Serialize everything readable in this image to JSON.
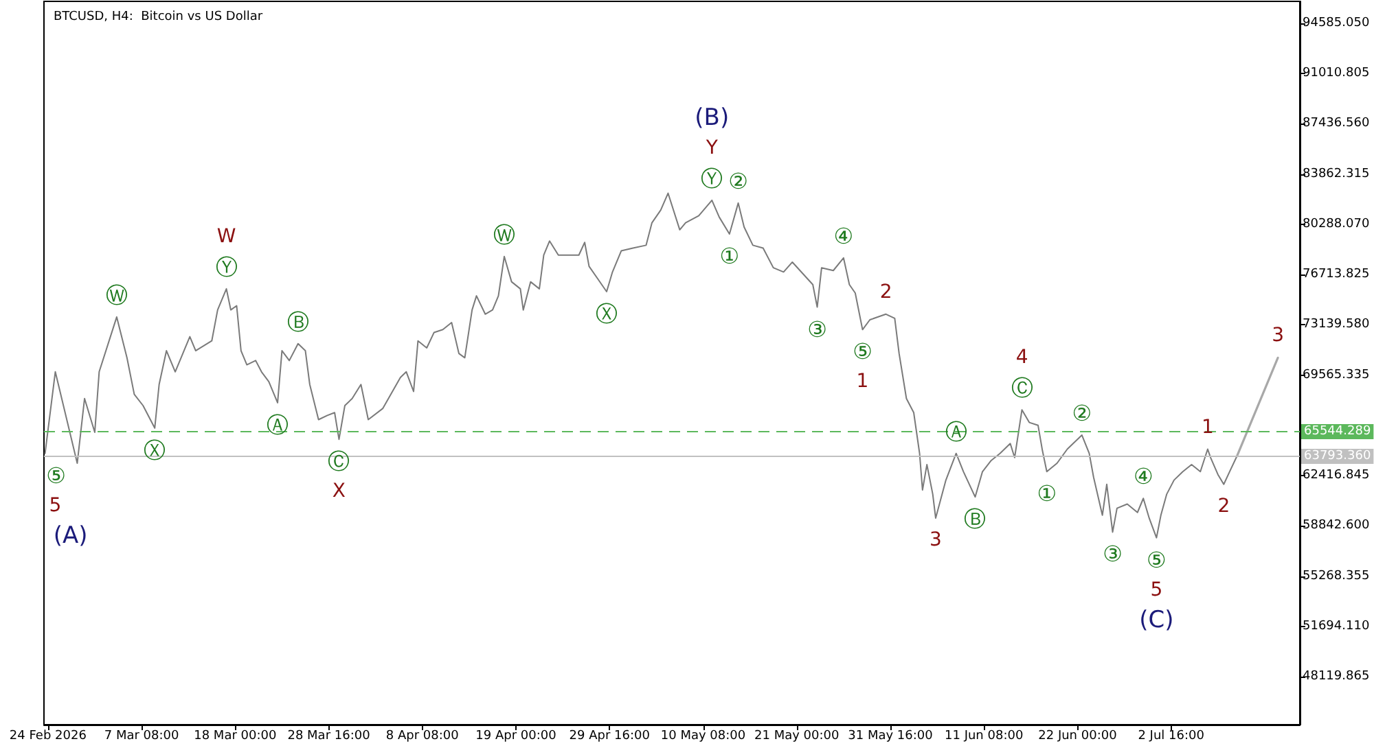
{
  "chart_data": {
    "type": "line",
    "title": "BTCUSD, H4:  Bitcoin vs US Dollar",
    "marker": "none",
    "grid": false,
    "xlim": [
      "2026-02-24T05:00",
      "2026-07-17T08:00"
    ],
    "xticks": [
      {
        "value": "2026-02-24T16:00",
        "label": "24 Feb 2026"
      },
      {
        "value": "2026-03-07T08:00",
        "label": "7 Mar 08:00"
      },
      {
        "value": "2026-03-18T00:00",
        "label": "18 Mar 00:00"
      },
      {
        "value": "2026-03-28T16:00",
        "label": "28 Mar 16:00"
      },
      {
        "value": "2026-04-08T08:00",
        "label": "8 Apr 08:00"
      },
      {
        "value": "2026-04-19T00:00",
        "label": "19 Apr 00:00"
      },
      {
        "value": "2026-04-29T16:00",
        "label": "29 Apr 16:00"
      },
      {
        "value": "2026-05-10T08:00",
        "label": "10 May 08:00"
      },
      {
        "value": "2026-05-21T00:00",
        "label": "21 May 00:00"
      },
      {
        "value": "2026-05-31T16:00",
        "label": "31 May 16:00"
      },
      {
        "value": "2026-06-11T08:00",
        "label": "11 Jun 08:00"
      },
      {
        "value": "2026-06-22T00:00",
        "label": "22 Jun 00:00"
      },
      {
        "value": "2026-07-02T16:00",
        "label": "2 Jul 16:00"
      }
    ],
    "ylim": [
      44710,
      96140
    ],
    "yticks": [
      {
        "value": 94585.05,
        "label": "94585.050"
      },
      {
        "value": 91010.805,
        "label": "91010.805"
      },
      {
        "value": 87436.56,
        "label": "87436.560"
      },
      {
        "value": 83862.315,
        "label": "83862.315"
      },
      {
        "value": 80288.07,
        "label": "80288.070"
      },
      {
        "value": 76713.825,
        "label": "76713.825"
      },
      {
        "value": 73139.58,
        "label": "73139.580"
      },
      {
        "value": 69565.335,
        "label": "69565.335"
      },
      {
        "value": 62416.845,
        "label": "62416.845"
      },
      {
        "value": 58842.6,
        "label": "58842.600"
      },
      {
        "value": 55268.355,
        "label": "55268.355"
      },
      {
        "value": 51694.11,
        "label": "51694.110"
      },
      {
        "value": 48119.865,
        "label": "48119.865"
      }
    ],
    "ref_lines": [
      {
        "axis": "y",
        "value": 65544.289,
        "label": "65544.289",
        "color": "#5cb85c",
        "line_style": "dashed"
      },
      {
        "axis": "y",
        "value": 63793.36,
        "label": "63793.360",
        "color": "#c0c0c0",
        "line_style": "solid"
      }
    ],
    "series": [
      {
        "color": "#7a7a7a",
        "x": [
          "2026-02-24T08:00",
          "2026-02-25T12:00",
          "2026-02-28T00:00",
          "2026-02-28T20:00",
          "2026-03-02T00:00",
          "2026-03-02T12:00",
          "2026-03-04T12:00",
          "2026-03-05T16:00",
          "2026-03-06T12:00",
          "2026-03-07T12:00",
          "2026-03-08T20:00",
          "2026-03-09T08:00",
          "2026-03-10T04:00",
          "2026-03-11T04:00",
          "2026-03-11T20:00",
          "2026-03-12T20:00",
          "2026-03-13T12:00",
          "2026-03-15T08:00",
          "2026-03-16T00:00",
          "2026-03-17T00:00",
          "2026-03-17T12:00",
          "2026-03-18T04:00",
          "2026-03-18T16:00",
          "2026-03-19T08:00",
          "2026-03-20T08:00",
          "2026-03-21T00:00",
          "2026-03-21T20:00",
          "2026-03-22T20:00",
          "2026-03-23T08:00",
          "2026-03-24T04:00",
          "2026-03-25T04:00",
          "2026-03-26T00:00",
          "2026-03-26T12:00",
          "2026-03-27T12:00",
          "2026-03-28T12:00",
          "2026-03-29T08:00",
          "2026-03-29T20:00",
          "2026-03-30T12:00",
          "2026-03-31T08:00",
          "2026-04-01T08:00",
          "2026-04-02T04:00",
          "2026-04-03T20:00",
          "2026-04-05T20:00",
          "2026-04-06T12:00",
          "2026-04-07T08:00",
          "2026-04-07T20:00",
          "2026-04-08T20:00",
          "2026-04-09T16:00",
          "2026-04-10T16:00",
          "2026-04-11T16:00",
          "2026-04-12T12:00",
          "2026-04-13T04:00",
          "2026-04-14T00:00",
          "2026-04-14T12:00",
          "2026-04-15T12:00",
          "2026-04-16T08:00",
          "2026-04-17T00:00",
          "2026-04-17T16:00",
          "2026-04-18T12:00",
          "2026-04-19T12:00",
          "2026-04-19T20:00",
          "2026-04-20T16:00",
          "2026-04-21T16:00",
          "2026-04-22T04:00",
          "2026-04-22T20:00",
          "2026-04-23T20:00",
          "2026-04-26T04:00",
          "2026-04-26T20:00",
          "2026-04-27T08:00",
          "2026-04-28T08:00",
          "2026-04-29T08:00",
          "2026-04-30T00:00",
          "2026-05-01T00:00",
          "2026-05-02T08:00",
          "2026-05-03T20:00",
          "2026-05-04T12:00",
          "2026-05-05T12:00",
          "2026-05-06T08:00",
          "2026-05-07T16:00",
          "2026-05-08T08:00",
          "2026-05-09T20:00",
          "2026-05-11T08:00",
          "2026-05-12T04:00",
          "2026-05-13T08:00",
          "2026-05-14T08:00",
          "2026-05-15T00:00",
          "2026-05-16T00:00",
          "2026-05-17T04:00",
          "2026-05-18T08:00",
          "2026-05-19T12:00",
          "2026-05-20T12:00",
          "2026-05-22T20:00",
          "2026-05-23T08:00",
          "2026-05-23T20:00",
          "2026-05-25T04:00",
          "2026-05-26T08:00",
          "2026-05-27T00:00",
          "2026-05-27T16:00",
          "2026-05-28T12:00",
          "2026-05-29T08:00",
          "2026-05-31T04:00",
          "2026-06-01T04:00",
          "2026-06-01T16:00",
          "2026-06-02T12:00",
          "2026-06-03T08:00",
          "2026-06-04T00:00",
          "2026-06-04T08:00",
          "2026-06-04T20:00",
          "2026-06-05T12:00",
          "2026-06-05T20:00",
          "2026-06-07T00:00",
          "2026-06-08T04:00",
          "2026-06-09T00:00",
          "2026-06-10T08:00",
          "2026-06-11T04:00",
          "2026-06-12T04:00",
          "2026-06-13T04:00",
          "2026-06-14T08:00",
          "2026-06-14T20:00",
          "2026-06-15T16:00",
          "2026-06-16T12:00",
          "2026-06-17T12:00",
          "2026-06-18T00:00",
          "2026-06-18T12:00",
          "2026-06-19T16:00",
          "2026-06-20T20:00",
          "2026-06-22T12:00",
          "2026-06-23T08:00",
          "2026-06-23T20:00",
          "2026-06-24T20:00",
          "2026-06-25T08:00",
          "2026-06-26T00:00",
          "2026-06-26T12:00",
          "2026-06-27T16:00",
          "2026-06-28T20:00",
          "2026-06-29T12:00",
          "2026-06-30T04:00",
          "2026-07-01T00:00",
          "2026-07-01T12:00",
          "2026-07-02T04:00",
          "2026-07-03T00:00",
          "2026-07-04T00:00",
          "2026-07-05T00:00",
          "2026-07-06T00:00",
          "2026-07-06T20:00",
          "2026-07-07T04:00",
          "2026-07-08T00:00",
          "2026-07-08T16:00",
          "2026-07-09T08:00",
          "2026-07-10T04:00"
        ],
        "values": [
          64000,
          69800,
          63300,
          67900,
          65500,
          69800,
          73700,
          70800,
          68200,
          67400,
          65800,
          68900,
          71300,
          69800,
          70800,
          72300,
          71300,
          72000,
          74200,
          75700,
          74200,
          74500,
          71300,
          70300,
          70600,
          69800,
          69100,
          67600,
          71300,
          70600,
          71800,
          71300,
          68900,
          66400,
          66700,
          66900,
          65000,
          67400,
          67900,
          68900,
          66400,
          67200,
          69400,
          69800,
          68400,
          72000,
          71500,
          72600,
          72800,
          73300,
          71100,
          70800,
          74200,
          75200,
          73900,
          74200,
          75200,
          78000,
          76200,
          75700,
          74200,
          76200,
          75700,
          78100,
          79100,
          78100,
          78100,
          79000,
          77300,
          76400,
          75500,
          76900,
          78400,
          78600,
          78800,
          80400,
          81300,
          82500,
          79900,
          80400,
          80900,
          82000,
          80800,
          79600,
          81800,
          80100,
          78800,
          78600,
          77200,
          76900,
          77600,
          76000,
          74400,
          77200,
          77000,
          77900,
          76000,
          75400,
          72800,
          73500,
          73900,
          73600,
          71100,
          67900,
          66900,
          64000,
          61400,
          63200,
          61100,
          59400,
          62100,
          64000,
          62700,
          60900,
          62700,
          63500,
          64000,
          64700,
          63700,
          67100,
          66200,
          66000,
          64200,
          62700,
          63300,
          64300,
          65300,
          64000,
          62300,
          59600,
          61800,
          58400,
          60100,
          60400,
          59800,
          60800,
          59400,
          58000,
          59600,
          61100,
          62100,
          62700,
          63200,
          62700,
          64300,
          63700,
          62500,
          61800,
          62700,
          63800
        ]
      },
      {
        "color": "#a8a8a8",
        "x": [
          "2026-07-10T04:00",
          "2026-07-14T20:00"
        ],
        "values": [
          63800,
          70800
        ]
      }
    ],
    "annotations": [
      {
        "text": "⑤",
        "x": "2026-02-24T08:00",
        "y": 64000
      },
      {
        "text": "5",
        "x": "2026-02-24T08:00",
        "y": 64000
      },
      {
        "text": "(A)",
        "x": "2026-02-24T08:00",
        "y": 64000
      },
      {
        "text": "Ⓦ",
        "x": "2026-03-04T12:00",
        "y": 73700
      },
      {
        "text": "Ⓨ",
        "x": "2026-03-17T00:00",
        "y": 75700
      },
      {
        "text": "W",
        "x": "2026-03-17T00:00",
        "y": 75700
      },
      {
        "text": "Ⓧ",
        "x": "2026-03-08T20:00",
        "y": 65800
      },
      {
        "text": "Ⓐ",
        "x": "2026-03-22T20:00",
        "y": 67600
      },
      {
        "text": "Ⓑ",
        "x": "2026-03-25T04:00",
        "y": 71800
      },
      {
        "text": "Ⓒ",
        "x": "2026-03-29T20:00",
        "y": 65000
      },
      {
        "text": "X",
        "x": "2026-03-29T20:00",
        "y": 65000
      },
      {
        "text": "Ⓦ",
        "x": "2026-04-17T16:00",
        "y": 78000
      },
      {
        "text": "Ⓧ",
        "x": "2026-04-29T08:00",
        "y": 75500
      },
      {
        "text": "Ⓨ",
        "x": "2026-05-11T08:00",
        "y": 82000
      },
      {
        "text": "Y",
        "x": "2026-05-11T08:00",
        "y": 82000
      },
      {
        "text": "(B)",
        "x": "2026-05-11T08:00",
        "y": 82000
      },
      {
        "text": "②",
        "x": "2026-05-14T08:00",
        "y": 81800
      },
      {
        "text": "①",
        "x": "2026-05-13T08:00",
        "y": 79600
      },
      {
        "text": "④",
        "x": "2026-05-26T08:00",
        "y": 77900
      },
      {
        "text": "③",
        "x": "2026-05-23T08:00",
        "y": 74400
      },
      {
        "text": "2",
        "x": "2026-05-31T04:00",
        "y": 73900
      },
      {
        "text": "⑤",
        "x": "2026-05-28T12:00",
        "y": 72800
      },
      {
        "text": "1",
        "x": "2026-05-28T12:00",
        "y": 72800
      },
      {
        "text": "3",
        "x": "2026-06-05T20:00",
        "y": 59400
      },
      {
        "text": "Ⓐ",
        "x": "2026-06-08T04:00",
        "y": 64000
      },
      {
        "text": "Ⓑ",
        "x": "2026-06-10T08:00",
        "y": 60900
      },
      {
        "text": "Ⓒ",
        "x": "2026-06-15T16:00",
        "y": 67100
      },
      {
        "text": "4",
        "x": "2026-06-15T16:00",
        "y": 67100
      },
      {
        "text": "②",
        "x": "2026-06-22T12:00",
        "y": 65300
      },
      {
        "text": "①",
        "x": "2026-06-18T12:00",
        "y": 62700
      },
      {
        "text": "③",
        "x": "2026-06-26T00:00",
        "y": 58400
      },
      {
        "text": "④",
        "x": "2026-06-29T12:00",
        "y": 60800
      },
      {
        "text": "⑤",
        "x": "2026-07-01T00:00",
        "y": 58000
      },
      {
        "text": "5",
        "x": "2026-07-01T00:00",
        "y": 58000
      },
      {
        "text": "(C)",
        "x": "2026-07-01T00:00",
        "y": 58000
      },
      {
        "text": "1",
        "x": "2026-07-06T20:00",
        "y": 64300
      },
      {
        "text": "2",
        "x": "2026-07-08T16:00",
        "y": 61800
      },
      {
        "text": "3",
        "x": "2026-07-14T20:00",
        "y": 70800
      }
    ]
  }
}
